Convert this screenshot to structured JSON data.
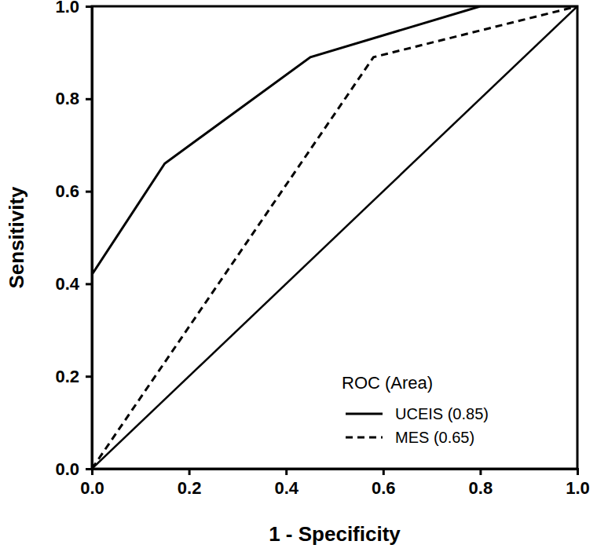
{
  "chart_data": {
    "type": "line",
    "x_label": "1 - Specificity",
    "y_label": "Sensitivity",
    "legend_title": "ROC (Area)",
    "legend": "lower right",
    "grid": false,
    "xlim": [
      0,
      1
    ],
    "ylim": [
      0,
      1
    ],
    "xticks": [
      {
        "value": 0,
        "label": "0.0"
      },
      0.2,
      0.4,
      0.6,
      0.8,
      {
        "value": 1,
        "label": "1.0"
      }
    ],
    "yticks": [
      {
        "value": 0,
        "label": "0.0"
      },
      0.2,
      0.4,
      0.6,
      0.8,
      {
        "value": 1,
        "label": "1.0"
      }
    ],
    "series": [
      {
        "name": "UCEIS (0.85)",
        "color": "#000000",
        "line_style": "solid",
        "marker": "none",
        "x": [
          0,
          0,
          0.15,
          0.45,
          0.8,
          1.0
        ],
        "values": [
          0,
          0.42,
          0.66,
          0.89,
          1.0,
          1.0
        ]
      },
      {
        "name": "MES (0.65)",
        "color": "#000000",
        "line_style": "dashed",
        "marker": "none",
        "x": [
          0,
          0.58,
          1.0
        ],
        "values": [
          0,
          0.89,
          1.0
        ]
      },
      {
        "color": "#000000",
        "line_style": "solid",
        "marker": "none",
        "x": [
          0,
          1
        ],
        "values": [
          0,
          1
        ]
      }
    ]
  }
}
